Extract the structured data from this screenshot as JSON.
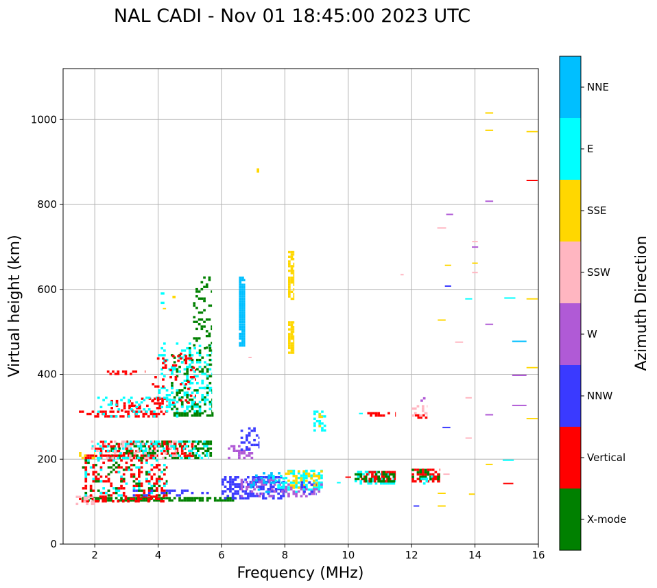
{
  "chart_data": {
    "type": "scatter",
    "title": "NAL CADI - Nov 01 18:45:00 2023 UTC",
    "xlabel": "Frequency (MHz)",
    "ylabel": "Virtual height (km)",
    "xlim": [
      1,
      16
    ],
    "ylim": [
      0,
      1120
    ],
    "xticks": [
      2,
      4,
      6,
      8,
      10,
      12,
      14,
      16
    ],
    "yticks": [
      0,
      200,
      400,
      600,
      800,
      1000
    ],
    "grid": true,
    "colorbar": {
      "title": "Azimuth Direction",
      "categories": [
        {
          "name": "X-mode",
          "color": "#008000"
        },
        {
          "name": "Vertical",
          "color": "#ff0000"
        },
        {
          "name": "NNW",
          "color": "#3a3aff"
        },
        {
          "name": "W",
          "color": "#b05ad6"
        },
        {
          "name": "SSW",
          "color": "#ffb6c1"
        },
        {
          "name": "SSE",
          "color": "#ffd700"
        },
        {
          "name": "E",
          "color": "#00ffff"
        },
        {
          "name": "NNE",
          "color": "#00bfff"
        }
      ]
    },
    "segments": [
      {
        "cat": "X-mode",
        "f0": 1.6,
        "f1": 6.45,
        "h0": 100,
        "h1": 110,
        "density": 0.75
      },
      {
        "cat": "Vertical",
        "f0": 1.5,
        "f1": 4.2,
        "h0": 98,
        "h1": 112,
        "density": 0.45
      },
      {
        "cat": "SSW",
        "f0": 1.4,
        "f1": 2.0,
        "h0": 92,
        "h1": 112,
        "density": 0.4
      },
      {
        "cat": "Vertical",
        "f0": 1.6,
        "f1": 4.3,
        "h0": 112,
        "h1": 195,
        "density": 0.22
      },
      {
        "cat": "X-mode",
        "f0": 1.6,
        "f1": 4.3,
        "h0": 112,
        "h1": 195,
        "density": 0.1
      },
      {
        "cat": "E",
        "f0": 1.6,
        "f1": 4.3,
        "h0": 112,
        "h1": 195,
        "density": 0.08
      },
      {
        "cat": "NNW",
        "f0": 3.2,
        "f1": 5.6,
        "h0": 112,
        "h1": 125,
        "density": 0.25
      },
      {
        "cat": "Vertical",
        "f0": 1.6,
        "f1": 4.0,
        "h0": 200,
        "h1": 210,
        "density": 0.55
      },
      {
        "cat": "X-mode",
        "f0": 2.5,
        "f1": 5.7,
        "h0": 200,
        "h1": 240,
        "density": 0.38
      },
      {
        "cat": "Vertical",
        "f0": 2.0,
        "f1": 5.2,
        "h0": 205,
        "h1": 240,
        "density": 0.28
      },
      {
        "cat": "E",
        "f0": 1.9,
        "f1": 5.6,
        "h0": 200,
        "h1": 240,
        "density": 0.22
      },
      {
        "cat": "SSW",
        "f0": 1.8,
        "f1": 4.6,
        "h0": 200,
        "h1": 240,
        "density": 0.18
      },
      {
        "cat": "SSE",
        "f0": 1.5,
        "f1": 2.0,
        "h0": 200,
        "h1": 215,
        "density": 0.3
      },
      {
        "cat": "W",
        "f0": 6.2,
        "f1": 7.0,
        "h0": 200,
        "h1": 230,
        "density": 0.35
      },
      {
        "cat": "NNW",
        "f0": 6.6,
        "f1": 7.2,
        "h0": 220,
        "h1": 275,
        "density": 0.25
      },
      {
        "cat": "Vertical",
        "f0": 1.5,
        "f1": 4.3,
        "h0": 298,
        "h1": 312,
        "density": 0.5
      },
      {
        "cat": "Vertical",
        "f0": 2.5,
        "f1": 4.3,
        "h0": 312,
        "h1": 345,
        "density": 0.3
      },
      {
        "cat": "E",
        "f0": 2.0,
        "f1": 4.8,
        "h0": 298,
        "h1": 345,
        "density": 0.18
      },
      {
        "cat": "X-mode",
        "f0": 4.4,
        "f1": 5.75,
        "h0": 300,
        "h1": 310,
        "density": 0.65
      },
      {
        "cat": "X-mode",
        "f0": 4.4,
        "f1": 5.7,
        "h0": 310,
        "h1": 460,
        "density": 0.2
      },
      {
        "cat": "E",
        "f0": 4.0,
        "f1": 5.7,
        "h0": 310,
        "h1": 470,
        "density": 0.2
      },
      {
        "cat": "Vertical",
        "f0": 3.8,
        "f1": 5.2,
        "h0": 330,
        "h1": 450,
        "density": 0.12
      },
      {
        "cat": "X-mode",
        "f0": 5.1,
        "f1": 5.7,
        "h0": 460,
        "h1": 630,
        "density": 0.18
      },
      {
        "cat": "Vertical",
        "f0": 2.3,
        "f1": 3.6,
        "h0": 398,
        "h1": 408,
        "density": 0.35
      },
      {
        "cat": "E",
        "f0": 4.0,
        "f1": 4.2,
        "h0": 560,
        "h1": 590,
        "density": 0.5
      },
      {
        "cat": "NNW",
        "f0": 6.0,
        "f1": 8.0,
        "h0": 105,
        "h1": 160,
        "density": 0.5
      },
      {
        "cat": "W",
        "f0": 6.6,
        "f1": 8.0,
        "h0": 110,
        "h1": 150,
        "density": 0.3
      },
      {
        "cat": "NNE",
        "f0": 6.9,
        "f1": 8.0,
        "h0": 120,
        "h1": 165,
        "density": 0.3
      },
      {
        "cat": "E",
        "f0": 7.6,
        "f1": 8.0,
        "h0": 130,
        "h1": 160,
        "density": 0.4
      },
      {
        "cat": "NNE",
        "f0": 6.55,
        "f1": 6.75,
        "h0": 465,
        "h1": 625,
        "density": 0.95
      },
      {
        "cat": "SSE",
        "f0": 8.1,
        "f1": 8.3,
        "h0": 448,
        "h1": 520,
        "density": 0.85
      },
      {
        "cat": "SSE",
        "f0": 8.1,
        "f1": 8.3,
        "h0": 575,
        "h1": 690,
        "density": 0.75
      },
      {
        "cat": "E",
        "f0": 8.0,
        "f1": 9.2,
        "h0": 120,
        "h1": 172,
        "density": 0.45
      },
      {
        "cat": "W",
        "f0": 8.0,
        "f1": 9.2,
        "h0": 110,
        "h1": 140,
        "density": 0.35
      },
      {
        "cat": "SSE",
        "f0": 8.0,
        "f1": 9.2,
        "h0": 130,
        "h1": 172,
        "density": 0.35
      },
      {
        "cat": "NNW",
        "f0": 8.5,
        "f1": 9.0,
        "h0": 115,
        "h1": 145,
        "density": 0.3
      },
      {
        "cat": "E",
        "f0": 8.9,
        "f1": 9.3,
        "h0": 265,
        "h1": 312,
        "density": 0.45
      },
      {
        "cat": "SSE",
        "f0": 8.9,
        "f1": 9.2,
        "h0": 275,
        "h1": 305,
        "density": 0.2
      },
      {
        "cat": "E",
        "f0": 10.2,
        "f1": 11.5,
        "h0": 140,
        "h1": 168,
        "density": 0.6
      },
      {
        "cat": "Vertical",
        "f0": 10.4,
        "f1": 11.5,
        "h0": 145,
        "h1": 170,
        "density": 0.5
      },
      {
        "cat": "X-mode",
        "f0": 10.2,
        "f1": 11.5,
        "h0": 145,
        "h1": 170,
        "density": 0.4
      },
      {
        "cat": "Vertical",
        "f0": 10.6,
        "f1": 11.5,
        "h0": 300,
        "h1": 308,
        "density": 0.4
      },
      {
        "cat": "Vertical",
        "f0": 12.0,
        "f1": 12.9,
        "h0": 145,
        "h1": 175,
        "density": 0.55
      },
      {
        "cat": "X-mode",
        "f0": 12.0,
        "f1": 12.9,
        "h0": 150,
        "h1": 175,
        "density": 0.3
      },
      {
        "cat": "E",
        "f0": 12.2,
        "f1": 12.9,
        "h0": 140,
        "h1": 160,
        "density": 0.25
      },
      {
        "cat": "Vertical",
        "f0": 12.1,
        "f1": 12.5,
        "h0": 295,
        "h1": 305,
        "density": 0.5
      },
      {
        "cat": "SSW",
        "f0": 12.0,
        "f1": 12.5,
        "h0": 300,
        "h1": 325,
        "density": 0.3
      },
      {
        "cat": "W",
        "f0": 12.2,
        "f1": 12.5,
        "h0": 335,
        "h1": 342,
        "density": 0.5
      }
    ],
    "marks": [
      {
        "cat": "SSE",
        "f": 7.15,
        "h": 880,
        "w": 0.08,
        "t": 10
      },
      {
        "cat": "SSE",
        "f": 4.2,
        "h": 555,
        "w": 0.1
      },
      {
        "cat": "SSE",
        "f": 4.5,
        "h": 582,
        "w": 0.1,
        "t": 6
      },
      {
        "cat": "SSW",
        "f": 6.9,
        "h": 440,
        "w": 0.1
      },
      {
        "cat": "SSW",
        "f": 11.7,
        "h": 635,
        "w": 0.1
      },
      {
        "cat": "E",
        "f": 9.7,
        "h": 145,
        "w": 0.12
      },
      {
        "cat": "E",
        "f": 10.4,
        "h": 308,
        "w": 0.12
      },
      {
        "cat": "Vertical",
        "f": 10.0,
        "h": 158,
        "w": 0.18
      },
      {
        "cat": "NNW",
        "f": 12.15,
        "h": 90,
        "w": 0.18
      },
      {
        "cat": "SSE",
        "f": 12.95,
        "h": 90,
        "w": 0.25
      },
      {
        "cat": "SSE",
        "f": 12.95,
        "h": 120,
        "w": 0.25
      },
      {
        "cat": "SSW",
        "f": 13.1,
        "h": 165,
        "w": 0.2
      },
      {
        "cat": "NNW",
        "f": 13.1,
        "h": 275,
        "w": 0.25
      },
      {
        "cat": "SSE",
        "f": 12.95,
        "h": 528,
        "w": 0.25
      },
      {
        "cat": "NNW",
        "f": 13.15,
        "h": 608,
        "w": 0.2
      },
      {
        "cat": "SSE",
        "f": 13.15,
        "h": 657,
        "w": 0.2
      },
      {
        "cat": "SSW",
        "f": 12.95,
        "h": 745,
        "w": 0.28
      },
      {
        "cat": "W",
        "f": 13.2,
        "h": 777,
        "w": 0.22
      },
      {
        "cat": "SSW",
        "f": 13.5,
        "h": 476,
        "w": 0.25
      },
      {
        "cat": "SSW",
        "f": 13.8,
        "h": 250,
        "w": 0.2
      },
      {
        "cat": "SSW",
        "f": 13.8,
        "h": 345,
        "w": 0.2
      },
      {
        "cat": "E",
        "f": 13.8,
        "h": 578,
        "w": 0.22
      },
      {
        "cat": "SSE",
        "f": 13.9,
        "h": 118,
        "w": 0.18
      },
      {
        "cat": "SSE",
        "f": 14.0,
        "h": 662,
        "w": 0.18
      },
      {
        "cat": "SSW",
        "f": 14.0,
        "h": 640,
        "w": 0.18
      },
      {
        "cat": "W",
        "f": 14.0,
        "h": 700,
        "w": 0.2
      },
      {
        "cat": "SSW",
        "f": 14.0,
        "h": 713,
        "w": 0.18
      },
      {
        "cat": "SSE",
        "f": 14.45,
        "h": 188,
        "w": 0.22
      },
      {
        "cat": "W",
        "f": 14.45,
        "h": 305,
        "w": 0.25
      },
      {
        "cat": "W",
        "f": 14.45,
        "h": 518,
        "w": 0.25
      },
      {
        "cat": "W",
        "f": 14.45,
        "h": 808,
        "w": 0.25
      },
      {
        "cat": "SSE",
        "f": 14.45,
        "h": 975,
        "w": 0.25
      },
      {
        "cat": "SSE",
        "f": 14.45,
        "h": 1016,
        "w": 0.25
      },
      {
        "cat": "Vertical",
        "f": 15.05,
        "h": 143,
        "w": 0.32
      },
      {
        "cat": "E",
        "f": 15.05,
        "h": 198,
        "w": 0.35
      },
      {
        "cat": "E",
        "f": 15.1,
        "h": 580,
        "w": 0.35
      },
      {
        "cat": "W",
        "f": 15.4,
        "h": 327,
        "w": 0.45
      },
      {
        "cat": "W",
        "f": 15.4,
        "h": 398,
        "w": 0.45
      },
      {
        "cat": "NNE",
        "f": 15.4,
        "h": 478,
        "w": 0.45
      },
      {
        "cat": "SSE",
        "f": 15.8,
        "h": 296,
        "w": 0.35
      },
      {
        "cat": "SSE",
        "f": 15.8,
        "h": 416,
        "w": 0.35
      },
      {
        "cat": "SSE",
        "f": 15.8,
        "h": 578,
        "w": 0.35
      },
      {
        "cat": "Vertical",
        "f": 15.8,
        "h": 857,
        "w": 0.35
      },
      {
        "cat": "SSE",
        "f": 15.8,
        "h": 972,
        "w": 0.35
      }
    ]
  }
}
